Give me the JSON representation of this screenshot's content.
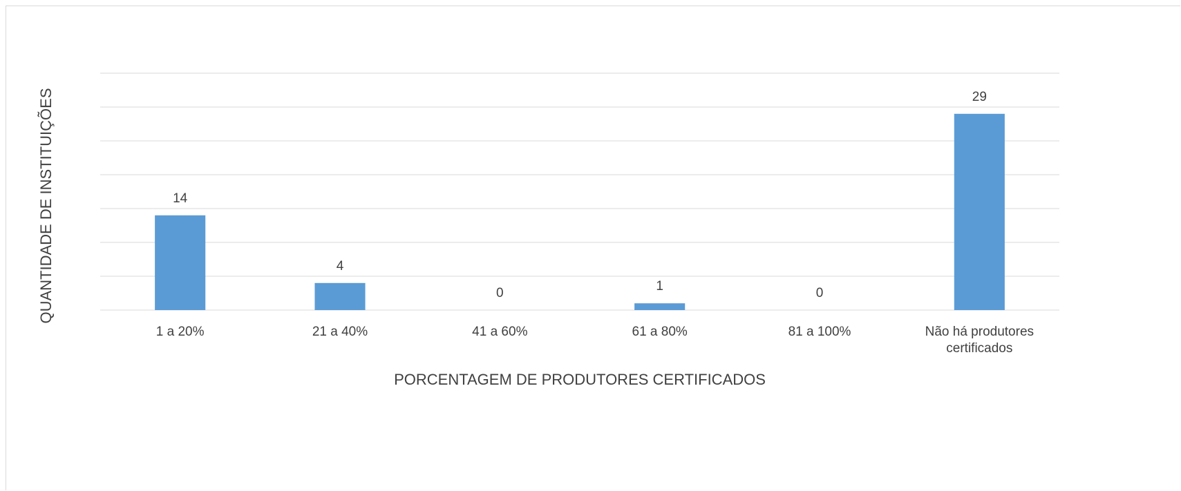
{
  "chart_data": {
    "type": "bar",
    "categories": [
      "1 a 20%",
      "21 a 40%",
      "41 a 60%",
      "61 a 80%",
      "81 a 100%",
      "Não há produtores certificados"
    ],
    "values": [
      14,
      4,
      0,
      1,
      0,
      29
    ],
    "color": "#5b9bd5",
    "x_label": "PORCENTAGEM DE PRODUTORES CERTIFICADOS",
    "y_label": "QUANTIDADE DE INSTITUIÇÕES",
    "ylim": [
      0,
      35
    ],
    "yticks": [
      0,
      5,
      10,
      15,
      20,
      25,
      30,
      35
    ],
    "grid": true
  }
}
